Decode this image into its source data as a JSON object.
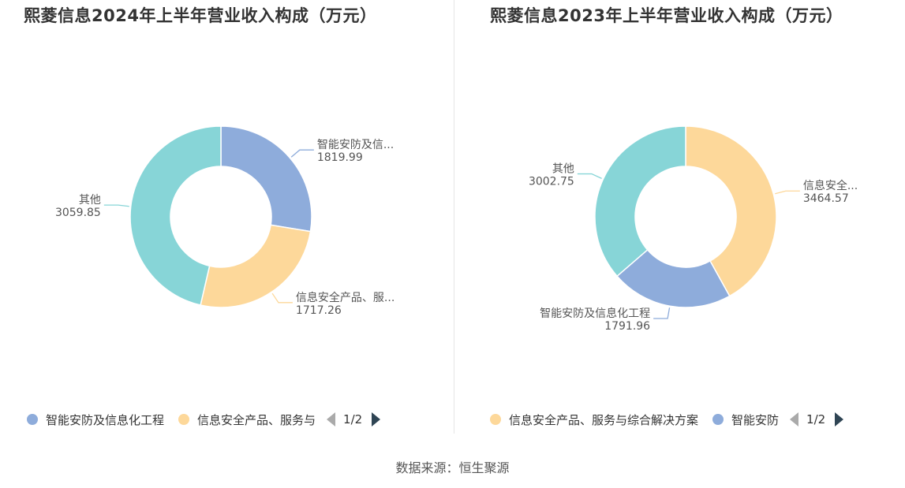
{
  "chart_data": [
    {
      "type": "pie",
      "title": "熙菱信息2024年上半年营业收入构成（万元）",
      "slices": [
        {
          "name": "智能安防及信息化工程",
          "label": "智能安防及信...",
          "value": 1819.99,
          "value_text": "1819.99",
          "color": "#8eacdb"
        },
        {
          "name": "信息安全产品、服务与综合解决方案",
          "label": "信息安全产品、服...",
          "value": 1717.26,
          "value_text": "1717.26",
          "color": "#fdd89a"
        },
        {
          "name": "其他",
          "label": "其他",
          "value": 3059.85,
          "value_text": "3059.85",
          "color": "#87d5d7"
        }
      ],
      "legend": {
        "position": "bottom",
        "items": [
          {
            "name": "智能安防及信息化工程",
            "color": "#8eacdb"
          },
          {
            "name": "信息安全产品、服务与",
            "color": "#fdd89a"
          }
        ],
        "page": "1/2"
      }
    },
    {
      "type": "pie",
      "title": "熙菱信息2023年上半年营业收入构成（万元）",
      "slices": [
        {
          "name": "信息安全产品、服务与综合解决方案",
          "label": "信息安全...",
          "value": 3464.57,
          "value_text": "3464.57",
          "color": "#fdd89a"
        },
        {
          "name": "智能安防及信息化工程",
          "label": "智能安防及信息化工程",
          "value": 1791.96,
          "value_text": "1791.96",
          "color": "#8eacdb"
        },
        {
          "name": "其他",
          "label": "其他",
          "value": 3002.75,
          "value_text": "3002.75",
          "color": "#87d5d7"
        }
      ],
      "legend": {
        "position": "bottom",
        "items": [
          {
            "name": "信息安全产品、服务与综合解决方案",
            "color": "#fdd89a"
          },
          {
            "name": "智能安防",
            "color": "#8eacdb"
          }
        ],
        "page": "1/2"
      }
    }
  ],
  "footer": {
    "source": "数据来源：恒生聚源"
  }
}
